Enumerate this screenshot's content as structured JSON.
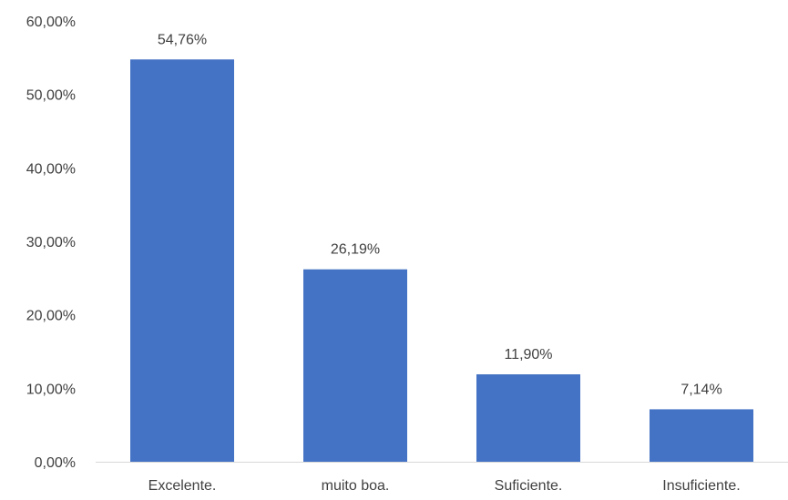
{
  "chart_data": {
    "type": "bar",
    "categories": [
      "Excelente.",
      "muito boa.",
      "Suficiente.",
      "Insuficiente."
    ],
    "values": [
      54.76,
      26.19,
      11.9,
      7.14
    ],
    "value_labels": [
      "54,76%",
      "26,19%",
      "11,90%",
      "7,14%"
    ],
    "ylim": [
      0,
      60
    ],
    "yticks": [
      0,
      10,
      20,
      30,
      40,
      50,
      60
    ],
    "ytick_labels": [
      "0,00%",
      "10,00%",
      "20,00%",
      "30,00%",
      "40,00%",
      "50,00%",
      "60,00%"
    ],
    "grid": false,
    "legend": "none",
    "colors": {
      "bar": "#4472C4",
      "axis": "#D9D9D9",
      "text": "#404040"
    }
  }
}
